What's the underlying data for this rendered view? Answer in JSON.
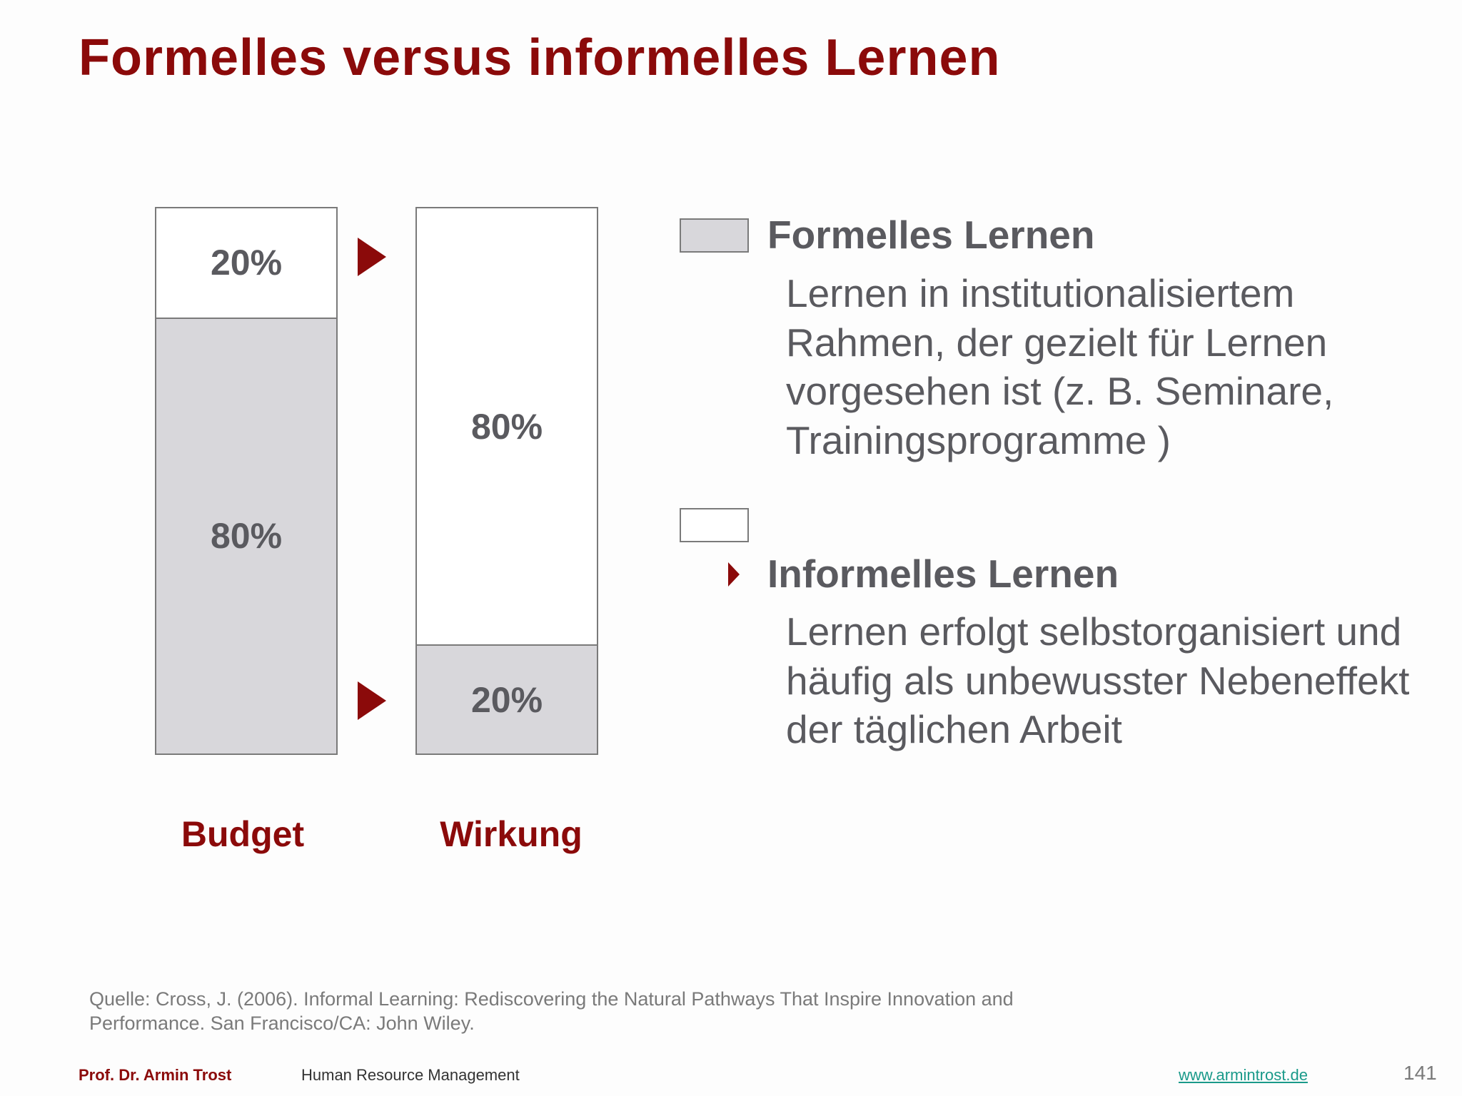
{
  "title": "Formelles versus informelles Lernen",
  "chart_data": {
    "type": "bar",
    "stacked": true,
    "categories": [
      "Budget",
      "Wirkung"
    ],
    "series": [
      {
        "name": "Formelles Lernen",
        "values": [
          80,
          20
        ],
        "color": "#d8d7db"
      },
      {
        "name": "Informelles Lernen",
        "values": [
          20,
          80
        ],
        "color": "#ffffff"
      }
    ],
    "value_labels": {
      "Budget": {
        "formal": "80%",
        "informal": "20%"
      },
      "Wirkung": {
        "formal": "20%",
        "informal": "80%"
      }
    },
    "ylim": [
      0,
      100
    ],
    "legend": "right"
  },
  "legend": {
    "formal": {
      "heading": "Formelles Lernen",
      "description": "Lernen in institutionalisiertem Rahmen, der gezielt für Lernen vorgesehen ist (z. B. Seminare, Trainingsprogramme )"
    },
    "informal": {
      "heading": "Informelles Lernen",
      "description": "Lernen erfolgt selbstorganisiert und häufig als unbewusster Nebeneffekt der täglichen Arbeit"
    }
  },
  "source": "Quelle: Cross, J. (2006).  Informal Learning: Rediscovering the Natural Pathways That Inspire Innovation and Performance. San Francisco/CA: John Wiley.",
  "footer": {
    "author": "Prof. Dr. Armin Trost",
    "course": "Human Resource Management",
    "website": "www.armintrost.de",
    "page_number": "141"
  },
  "colors": {
    "accent": "#8b0a0a",
    "text": "#5a5a5f",
    "link": "#1a9a8a"
  }
}
